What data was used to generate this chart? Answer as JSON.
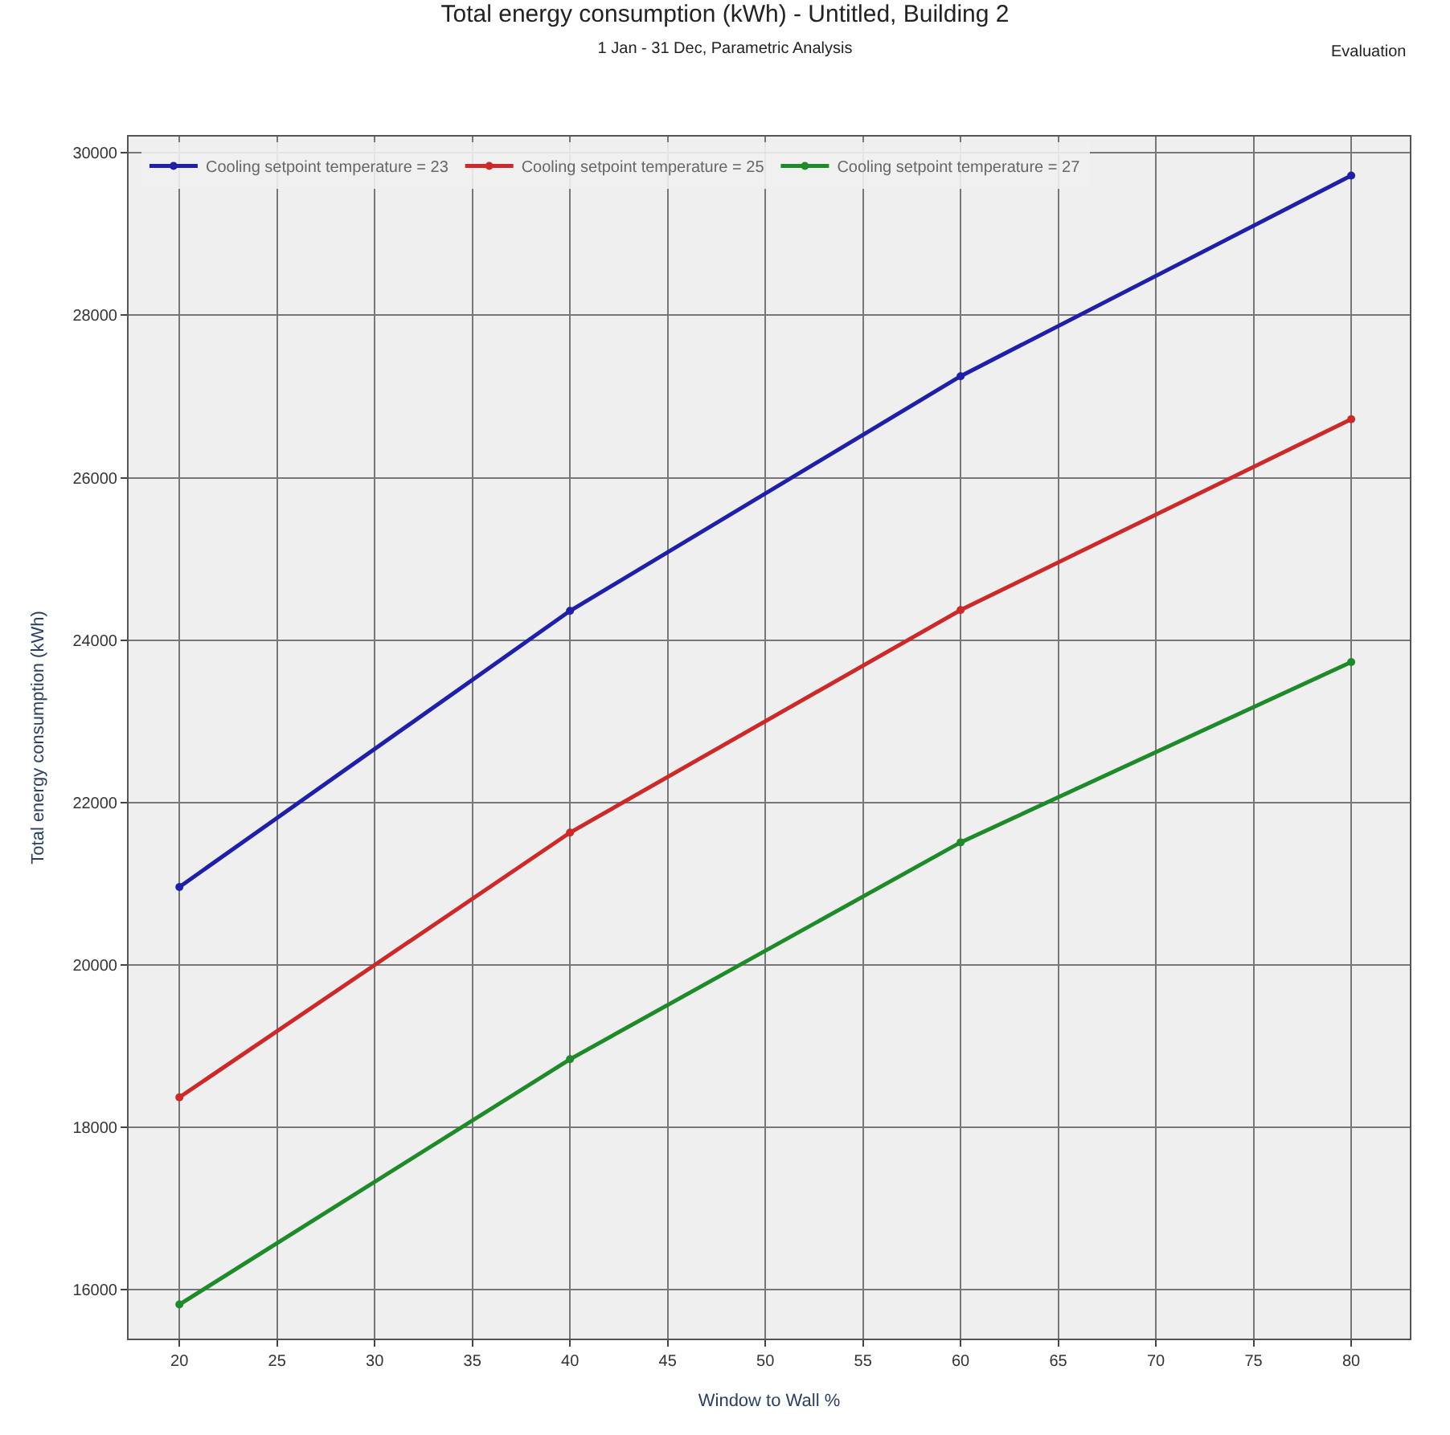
{
  "chart_data": {
    "type": "line",
    "title": "Total energy consumption (kWh) - Untitled, Building 2",
    "subtitle": "1 Jan - 31 Dec, Parametric Analysis",
    "annotations": [
      "Evaluation"
    ],
    "xlabel": "Window to Wall %",
    "ylabel": "Total energy consumption (kWh)",
    "x": [
      20,
      40,
      60,
      80
    ],
    "series": [
      {
        "name": "Cooling setpoint temperature = 23",
        "color": "#1f1fa8",
        "values": [
          20960,
          24360,
          27250,
          29720
        ]
      },
      {
        "name": "Cooling setpoint temperature = 25",
        "color": "#cc2a2a",
        "values": [
          18370,
          21630,
          24370,
          26720
        ]
      },
      {
        "name": "Cooling setpoint temperature = 27",
        "color": "#1e8a2a",
        "values": [
          15820,
          18840,
          21510,
          23730
        ]
      }
    ],
    "xlim": [
      17.4,
      83
    ],
    "xticks": [
      20,
      25,
      30,
      35,
      40,
      45,
      50,
      55,
      60,
      65,
      70,
      75,
      80
    ],
    "ylim": [
      15400,
      30200
    ],
    "yticks": [
      16000,
      18000,
      20000,
      22000,
      24000,
      26000,
      28000,
      30000
    ],
    "grid": true,
    "legend": "top left",
    "marker": "circle",
    "line_style": "solid"
  }
}
